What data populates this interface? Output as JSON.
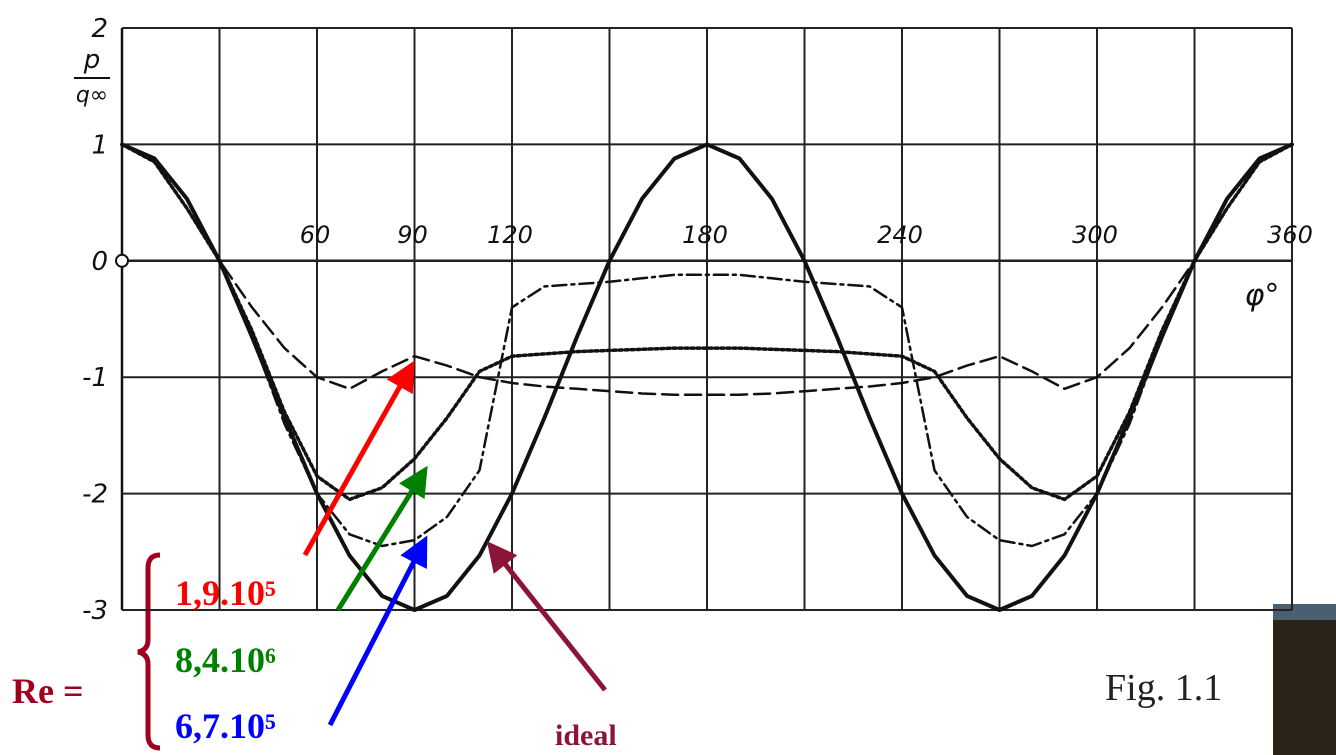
{
  "chart_data": {
    "type": "line",
    "y_label": {
      "numerator": "p",
      "denominator": "q∞"
    },
    "x_label": "φ°",
    "legend_title": "Re =",
    "annotation": "Fig. 1.1",
    "xlim": [
      0,
      360
    ],
    "ylim": [
      -3,
      2
    ],
    "xticks": [
      {
        "value": 30,
        "label": null
      },
      60,
      90,
      120,
      {
        "value": 150,
        "label": null
      },
      180,
      {
        "value": 210,
        "label": null
      },
      240,
      {
        "value": 270,
        "label": null
      },
      300,
      {
        "value": 330,
        "label": null
      },
      360
    ],
    "yticks": [
      2,
      1,
      0,
      -1,
      -2,
      -3
    ],
    "grid": true,
    "x": [
      0,
      10,
      20,
      30,
      40,
      50,
      60,
      70,
      80,
      90,
      100,
      110,
      120,
      130,
      140,
      150,
      160,
      170,
      180,
      190,
      200,
      210,
      220,
      230,
      240,
      250,
      260,
      270,
      280,
      290,
      300,
      310,
      320,
      330,
      340,
      350,
      360
    ],
    "series": [
      {
        "name": "1,9.10⁵",
        "color": "#111111",
        "label_color": "#ff0000",
        "style": "dashed",
        "values": [
          1,
          0.85,
          0.45,
          0,
          -0.4,
          -0.75,
          -1.0,
          -1.1,
          -0.95,
          -0.82,
          -0.9,
          -1.0,
          -1.05,
          -1.08,
          -1.1,
          -1.12,
          -1.14,
          -1.15,
          -1.15,
          -1.15,
          -1.14,
          -1.12,
          -1.1,
          -1.08,
          -1.05,
          -1.0,
          -0.9,
          -0.82,
          -0.95,
          -1.1,
          -1.0,
          -0.75,
          -0.4,
          0,
          0.45,
          0.85,
          1
        ]
      },
      {
        "name": "8,4.10⁶",
        "color": "#111111",
        "label_color": "#008000",
        "style": "dotted",
        "values": [
          1,
          0.85,
          0.45,
          0,
          -0.6,
          -1.3,
          -1.85,
          -2.05,
          -1.95,
          -1.7,
          -1.35,
          -0.95,
          -0.82,
          -0.8,
          -0.78,
          -0.77,
          -0.76,
          -0.75,
          -0.75,
          -0.75,
          -0.76,
          -0.77,
          -0.78,
          -0.8,
          -0.82,
          -0.95,
          -1.35,
          -1.7,
          -1.95,
          -2.05,
          -1.85,
          -1.3,
          -0.6,
          0,
          0.45,
          0.85,
          1
        ]
      },
      {
        "name": "6,7.10⁵",
        "color": "#111111",
        "label_color": "#0000ff",
        "style": "dashdot",
        "values": [
          1,
          0.85,
          0.45,
          0,
          -0.65,
          -1.4,
          -2.0,
          -2.35,
          -2.45,
          -2.4,
          -2.2,
          -1.8,
          -0.4,
          -0.22,
          -0.2,
          -0.18,
          -0.15,
          -0.12,
          -0.12,
          -0.12,
          -0.15,
          -0.18,
          -0.2,
          -0.22,
          -0.4,
          -1.8,
          -2.2,
          -2.4,
          -2.45,
          -2.35,
          -2.0,
          -1.4,
          -0.65,
          0,
          0.45,
          0.85,
          1
        ]
      },
      {
        "name": "ideal",
        "color": "#111111",
        "label_color": "#8b1538",
        "style": "solid",
        "values": [
          1,
          0.879,
          0.532,
          0,
          -0.653,
          -1.347,
          -2,
          -2.532,
          -2.879,
          -3,
          -2.879,
          -2.532,
          -2,
          -1.347,
          -0.653,
          0,
          0.532,
          0.879,
          1,
          0.879,
          0.532,
          0,
          -0.653,
          -1.347,
          -2,
          -2.532,
          -2.879,
          -3,
          -2.879,
          -2.532,
          -2,
          -1.347,
          -0.653,
          0,
          0.532,
          0.879,
          1
        ]
      }
    ]
  }
}
